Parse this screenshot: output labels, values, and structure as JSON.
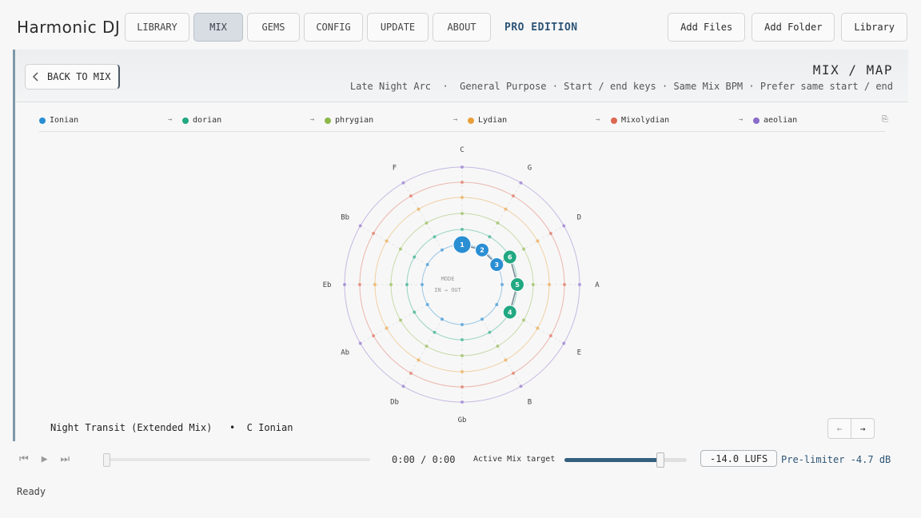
{
  "app": {
    "brand": "Harmonic DJ",
    "edition": "PRO EDITION",
    "nav": [
      {
        "label": "LIBRARY",
        "active": false
      },
      {
        "label": "MIX",
        "active": true
      },
      {
        "label": "GEMS",
        "active": false
      },
      {
        "label": "CONFIG",
        "active": false
      },
      {
        "label": "UPDATE",
        "active": false
      },
      {
        "label": "ABOUT",
        "active": false
      }
    ],
    "actions": {
      "add_files": "Add Files",
      "add_folder": "Add Folder",
      "library": "Library"
    }
  },
  "header": {
    "back_label": "BACK TO MIX",
    "title": "MIX  /  MAP",
    "subtitle": "Late Night Arc  ·  General Purpose · Start / end keys · Same Mix BPM · Prefer same start / end"
  },
  "legend": [
    {
      "label": "Ionian",
      "color": "#2a8ed3"
    },
    {
      "label": "dorian",
      "color": "#22a882"
    },
    {
      "label": "phrygian",
      "color": "#8db84a"
    },
    {
      "label": "Lydian",
      "color": "#e9a03b"
    },
    {
      "label": "Mixolydian",
      "color": "#de6752"
    },
    {
      "label": "aeolian",
      "color": "#8a6cc9"
    }
  ],
  "legend_copy_icon": "copy-icon",
  "wheel": {
    "center_label": "MODE",
    "center_sub": "IN → OUT",
    "keys": [
      "C",
      "G",
      "D",
      "A",
      "E",
      "B",
      "Gb",
      "Db",
      "Ab",
      "Eb",
      "Bb",
      "F"
    ],
    "tracks": [
      {
        "n": "1",
        "key": "C",
        "mode": "Ionian",
        "highlight": true
      },
      {
        "n": "2",
        "key": "G",
        "mode": "Ionian"
      },
      {
        "n": "3",
        "key": "D",
        "mode": "Ionian"
      },
      {
        "n": "6",
        "key": "D",
        "mode": "dorian"
      },
      {
        "n": "5",
        "key": "A",
        "mode": "dorian"
      },
      {
        "n": "4",
        "key": "E",
        "mode": "dorian"
      }
    ]
  },
  "now_playing": {
    "title": "Night Transit (Extended Mix)",
    "sep": "•",
    "key": "C Ionian"
  },
  "pager": {
    "prev": "←",
    "next": "→"
  },
  "transport": {
    "time": "0:00 / 0:00",
    "mix_target_label": "Active Mix target",
    "lufs_value": "-14.0 LUFS",
    "lufs_level": 0.78,
    "limiter": "Pre-limiter -4.7 dB"
  },
  "status": "Ready"
}
